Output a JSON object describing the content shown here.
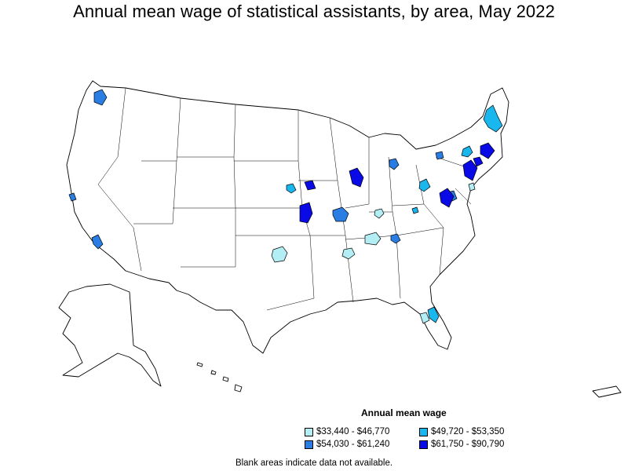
{
  "title": "Annual mean wage of statistical assistants, by area, May 2022",
  "legend": {
    "title": "Annual mean wage",
    "items": [
      {
        "label": "$33,440 - $46,770",
        "color": "#b3eef5"
      },
      {
        "label": "$49,720 - $53,350",
        "color": "#19b7ee"
      },
      {
        "label": "$54,030 - $61,240",
        "color": "#2a7de3"
      },
      {
        "label": "$61,750 - $90,790",
        "color": "#0a0ae6"
      }
    ]
  },
  "footnote": "Blank areas indicate data not available."
}
